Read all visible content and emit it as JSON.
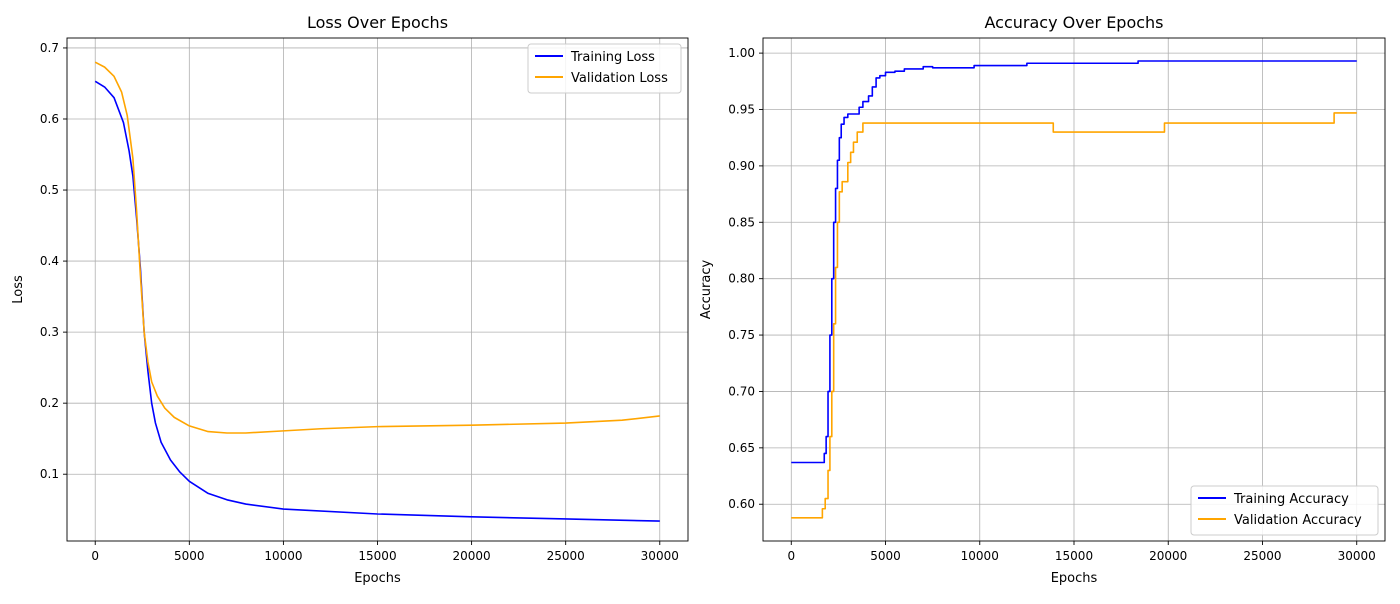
{
  "colors": {
    "training": "#0000ff",
    "validation": "#ffa500",
    "grid": "#b0b0b0",
    "axis": "#000000",
    "legend_border": "#cccccc"
  },
  "chart_data": [
    {
      "type": "line",
      "title": "Loss Over Epochs",
      "xlabel": "Epochs",
      "ylabel": "Loss",
      "xlim": [
        -1500,
        31500
      ],
      "ylim": [
        0.006,
        0.714
      ],
      "xticks": [
        0,
        5000,
        10000,
        15000,
        20000,
        25000,
        30000
      ],
      "yticks": [
        0.1,
        0.2,
        0.3,
        0.4,
        0.5,
        0.6,
        0.7
      ],
      "grid": true,
      "legend_position": "upper-right",
      "series": [
        {
          "name": "Training Loss",
          "color": "#0000ff",
          "step": false,
          "points": [
            [
              0,
              0.653
            ],
            [
              500,
              0.645
            ],
            [
              1000,
              0.63
            ],
            [
              1500,
              0.595
            ],
            [
              1800,
              0.555
            ],
            [
              2000,
              0.52
            ],
            [
              2200,
              0.46
            ],
            [
              2400,
              0.39
            ],
            [
              2600,
              0.3
            ],
            [
              2800,
              0.245
            ],
            [
              3000,
              0.2
            ],
            [
              3200,
              0.172
            ],
            [
              3500,
              0.145
            ],
            [
              4000,
              0.12
            ],
            [
              4500,
              0.103
            ],
            [
              5000,
              0.09
            ],
            [
              6000,
              0.073
            ],
            [
              7000,
              0.064
            ],
            [
              8000,
              0.058
            ],
            [
              10000,
              0.051
            ],
            [
              15000,
              0.044
            ],
            [
              20000,
              0.04
            ],
            [
              25000,
              0.037
            ],
            [
              30000,
              0.034
            ]
          ]
        },
        {
          "name": "Validation Loss",
          "color": "#ffa500",
          "step": false,
          "points": [
            [
              0,
              0.68
            ],
            [
              500,
              0.673
            ],
            [
              1000,
              0.66
            ],
            [
              1400,
              0.638
            ],
            [
              1700,
              0.605
            ],
            [
              2000,
              0.545
            ],
            [
              2200,
              0.47
            ],
            [
              2400,
              0.38
            ],
            [
              2600,
              0.3
            ],
            [
              2800,
              0.258
            ],
            [
              3000,
              0.23
            ],
            [
              3300,
              0.21
            ],
            [
              3700,
              0.193
            ],
            [
              4200,
              0.18
            ],
            [
              5000,
              0.168
            ],
            [
              6000,
              0.16
            ],
            [
              7000,
              0.158
            ],
            [
              8000,
              0.158
            ],
            [
              10000,
              0.161
            ],
            [
              12000,
              0.164
            ],
            [
              15000,
              0.167
            ],
            [
              20000,
              0.169
            ],
            [
              25000,
              0.172
            ],
            [
              28000,
              0.176
            ],
            [
              30000,
              0.182
            ]
          ]
        }
      ]
    },
    {
      "type": "line",
      "title": "Accuracy Over Epochs",
      "xlabel": "Epochs",
      "ylabel": "Accuracy",
      "xlim": [
        -1500,
        31500
      ],
      "ylim": [
        0.5674,
        1.0134
      ],
      "xticks": [
        0,
        5000,
        10000,
        15000,
        20000,
        25000,
        30000
      ],
      "yticks": [
        0.6,
        0.65,
        0.7,
        0.75,
        0.8,
        0.85,
        0.9,
        0.95,
        1.0
      ],
      "ytick_labels": [
        "0.60",
        "0.65",
        "0.70",
        "0.75",
        "0.80",
        "0.85",
        "0.90",
        "0.95",
        "1.00"
      ],
      "grid": true,
      "legend_position": "lower-right",
      "series": [
        {
          "name": "Training Accuracy",
          "color": "#0000ff",
          "step": true,
          "points": [
            [
              0,
              0.637
            ],
            [
              1700,
              0.637
            ],
            [
              1750,
              0.645
            ],
            [
              1850,
              0.66
            ],
            [
              1950,
              0.7
            ],
            [
              2050,
              0.75
            ],
            [
              2150,
              0.8
            ],
            [
              2250,
              0.85
            ],
            [
              2350,
              0.88
            ],
            [
              2450,
              0.905
            ],
            [
              2550,
              0.925
            ],
            [
              2650,
              0.937
            ],
            [
              2800,
              0.943
            ],
            [
              3000,
              0.946
            ],
            [
              3400,
              0.946
            ],
            [
              3600,
              0.952
            ],
            [
              3800,
              0.957
            ],
            [
              4100,
              0.962
            ],
            [
              4300,
              0.97
            ],
            [
              4500,
              0.978
            ],
            [
              4700,
              0.98
            ],
            [
              5000,
              0.983
            ],
            [
              5500,
              0.984
            ],
            [
              6000,
              0.986
            ],
            [
              6800,
              0.986
            ],
            [
              7000,
              0.988
            ],
            [
              7500,
              0.987
            ],
            [
              9600,
              0.987
            ],
            [
              9700,
              0.989
            ],
            [
              12400,
              0.989
            ],
            [
              12500,
              0.991
            ],
            [
              18300,
              0.991
            ],
            [
              18400,
              0.993
            ],
            [
              30000,
              0.993
            ]
          ]
        },
        {
          "name": "Validation Accuracy",
          "color": "#ffa500",
          "step": true,
          "points": [
            [
              0,
              0.588
            ],
            [
              1600,
              0.588
            ],
            [
              1650,
              0.596
            ],
            [
              1800,
              0.605
            ],
            [
              1950,
              0.63
            ],
            [
              2050,
              0.66
            ],
            [
              2150,
              0.7
            ],
            [
              2250,
              0.76
            ],
            [
              2350,
              0.81
            ],
            [
              2450,
              0.85
            ],
            [
              2550,
              0.877
            ],
            [
              2700,
              0.886
            ],
            [
              2900,
              0.886
            ],
            [
              3000,
              0.903
            ],
            [
              3150,
              0.912
            ],
            [
              3300,
              0.921
            ],
            [
              3500,
              0.93
            ],
            [
              3800,
              0.938
            ],
            [
              13800,
              0.938
            ],
            [
              13900,
              0.93
            ],
            [
              19700,
              0.93
            ],
            [
              19800,
              0.938
            ],
            [
              28700,
              0.938
            ],
            [
              28800,
              0.947
            ],
            [
              30000,
              0.947
            ]
          ]
        }
      ]
    }
  ]
}
